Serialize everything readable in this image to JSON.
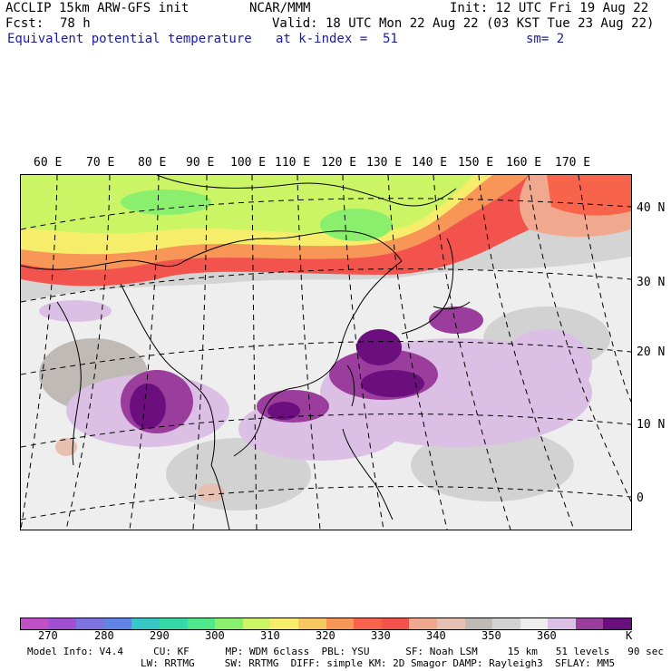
{
  "header": {
    "model": "ACCLIP 15km ARW-GFS init",
    "org": "NCAR/MMM",
    "init": "Init: 12 UTC Fri 19 Aug 22",
    "fcst_label": "Fcst:",
    "fcst_value": "78 h",
    "valid": "Valid: 18 UTC Mon 22 Aug 22 (03 KST Tue 23 Aug 22)",
    "field": "Equivalent potential temperature",
    "level": "at k-index =  51",
    "smooth": "sm= 2"
  },
  "map": {
    "lon_labels": [
      "60 E",
      "70 E",
      "80 E",
      "90 E",
      "100 E",
      "110 E",
      "120 E",
      "130 E",
      "140 E",
      "150 E",
      "160 E",
      "170 E"
    ],
    "lat_labels": [
      "40 N",
      "30 N",
      "20 N",
      "10 N",
      "0"
    ]
  },
  "colorbar": {
    "unit": "K",
    "ticks": [
      "270",
      "280",
      "290",
      "300",
      "310",
      "320",
      "330",
      "340",
      "350",
      "360"
    ],
    "colors": [
      "#c04fc7",
      "#a14fd2",
      "#7e73dc",
      "#5f84e6",
      "#38c7c7",
      "#35d9a8",
      "#4de88a",
      "#8aef6d",
      "#ccf565",
      "#f6ee6b",
      "#f7c963",
      "#f79657",
      "#f7644b",
      "#f2544d",
      "#f0a98e",
      "#e6c0b0",
      "#c0bab6",
      "#d2d2d2",
      "#eeeeee",
      "#dcbfe4",
      "#9a3d9c",
      "#6b0f7e"
    ]
  },
  "footer": {
    "line1": "Model Info: V4.4     CU: KF      MP: WDM 6class  PBL: YSU      SF: Noah LSM     15 km   51 levels   90 sec",
    "line2": "LW: RRTMG     SW: RRTMG  DIFF: simple KM: 2D Smagor DAMP: Rayleigh3  SFLAY: MM5"
  }
}
